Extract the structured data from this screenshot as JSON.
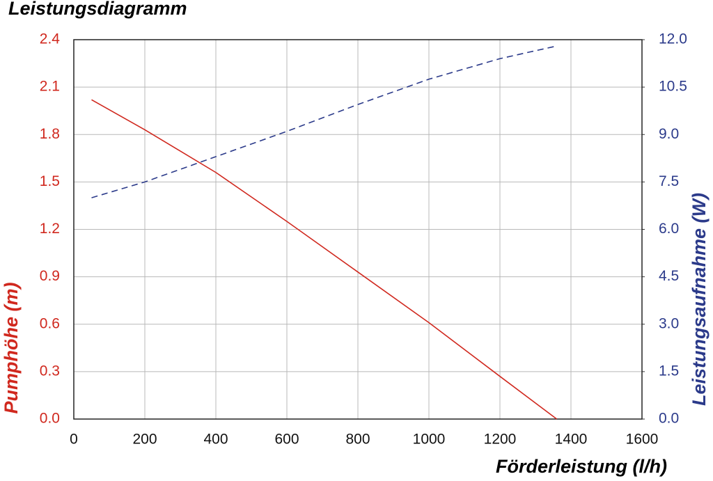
{
  "chart_data": {
    "type": "line",
    "title": "Leistungsdiagramm",
    "x_label": "Förderleistung (l/h)",
    "y_label": "Pumphöhe (m)",
    "y2_label": "Leistungsaufnahme (W)",
    "x": [
      50,
      200,
      400,
      600,
      800,
      1000,
      1200,
      1360
    ],
    "series": [
      {
        "name": "Pumphöhe",
        "color": "#d0281e",
        "values": [
          2.02,
          1.83,
          1.56,
          1.25,
          0.93,
          0.61,
          0.27,
          0
        ]
      },
      {
        "name": "Leistungsaufnahme",
        "color": "#2b3a8a",
        "axis": "y2",
        "dashed": true,
        "values": [
          7.0,
          7.5,
          8.3,
          9.1,
          9.95,
          10.75,
          11.4,
          11.8
        ]
      }
    ],
    "xlim": [
      0,
      1600
    ],
    "xticks": [
      0,
      200,
      400,
      600,
      800,
      1000,
      1200,
      1400,
      1600
    ],
    "ylim": [
      0,
      2.4
    ],
    "yticks": [
      {
        "value": 0,
        "label": "0.0"
      },
      0.3,
      0.6,
      0.9,
      1.2,
      1.5,
      1.8,
      2.1,
      2.4
    ],
    "y2lim": [
      0,
      12
    ],
    "y2ticks": [
      {
        "value": 0,
        "label": "0.0"
      },
      1.5,
      {
        "value": 3,
        "label": "3.0"
      },
      4.5,
      {
        "value": 6,
        "label": "6.0"
      },
      7.5,
      {
        "value": 9,
        "label": "9.0"
      },
      10.5,
      {
        "value": 12,
        "label": "12.0"
      }
    ],
    "grid": true
  }
}
